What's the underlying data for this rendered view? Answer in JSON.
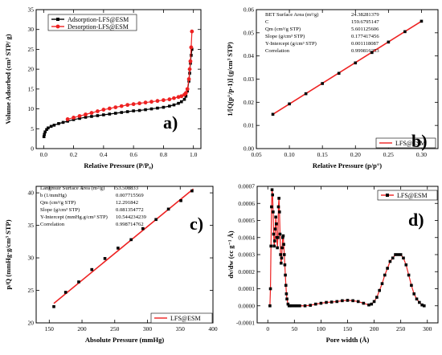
{
  "chart_data": [
    {
      "panel": "a)",
      "type": "line",
      "xlabel": "Relative Pressure (P/P₀)",
      "ylabel": "Volume Adsorbed (cm³ STP/ g)",
      "xlim": [
        -0.05,
        1.05
      ],
      "ylim": [
        0,
        35
      ],
      "xticks": [
        0.0,
        0.2,
        0.4,
        0.6,
        0.8,
        1.0
      ],
      "yticks": [
        0,
        5,
        10,
        15,
        20,
        25,
        30,
        35
      ],
      "xtick_labels": [
        "0.0",
        "0.2",
        "0.4",
        "0.6",
        "0.8",
        "1.0"
      ],
      "ytick_labels": [
        "0",
        "5",
        "10",
        "15",
        "20",
        "25",
        "30",
        "35"
      ],
      "legend_position": "top-left",
      "series": [
        {
          "name": "Adsorption-LFS@ESM",
          "color": "#000000",
          "marker": "square",
          "x": [
            0.002,
            0.005,
            0.01,
            0.02,
            0.03,
            0.05,
            0.07,
            0.1,
            0.13,
            0.16,
            0.2,
            0.24,
            0.28,
            0.32,
            0.36,
            0.4,
            0.44,
            0.48,
            0.52,
            0.56,
            0.6,
            0.64,
            0.68,
            0.72,
            0.76,
            0.8,
            0.84,
            0.87,
            0.9,
            0.92,
            0.94,
            0.95,
            0.96,
            0.97,
            0.975,
            0.98,
            0.985,
            0.99
          ],
          "y": [
            3.0,
            3.6,
            4.2,
            4.8,
            5.2,
            5.6,
            5.9,
            6.3,
            6.6,
            6.9,
            7.3,
            7.6,
            7.9,
            8.1,
            8.3,
            8.5,
            8.7,
            8.9,
            9.1,
            9.3,
            9.5,
            9.6,
            9.8,
            10.0,
            10.2,
            10.4,
            10.7,
            11.0,
            11.4,
            11.8,
            12.4,
            13.2,
            14.5,
            17.0,
            19.0,
            21.5,
            23.5,
            25.0
          ]
        },
        {
          "name": "Desorption-LFS@ESM",
          "color": "#ee2222",
          "marker": "circle",
          "x": [
            0.99,
            0.985,
            0.98,
            0.975,
            0.97,
            0.96,
            0.95,
            0.94,
            0.92,
            0.9,
            0.87,
            0.84,
            0.8,
            0.76,
            0.72,
            0.68,
            0.64,
            0.6,
            0.56,
            0.52,
            0.48,
            0.44,
            0.4,
            0.36,
            0.32,
            0.28,
            0.24,
            0.2,
            0.16
          ],
          "y": [
            29.5,
            25.5,
            22.0,
            20.0,
            17.5,
            15.0,
            14.0,
            13.6,
            13.2,
            13.0,
            12.7,
            12.4,
            12.2,
            12.0,
            11.8,
            11.6,
            11.4,
            11.2,
            11.0,
            10.7,
            10.4,
            10.1,
            9.8,
            9.4,
            9.0,
            8.6,
            8.2,
            7.8,
            7.4
          ]
        }
      ]
    },
    {
      "panel": "b)",
      "type": "scatter",
      "xlabel": "Relative Pressure (p/p°)",
      "ylabel": "1/[Q(p°/p-1)] (g/cm³ STP)",
      "xlim": [
        0.05,
        0.325
      ],
      "ylim": [
        0.0,
        0.06
      ],
      "xticks": [
        0.05,
        0.1,
        0.15,
        0.2,
        0.25,
        0.3
      ],
      "yticks": [
        0.0,
        0.01,
        0.02,
        0.03,
        0.04,
        0.05,
        0.06
      ],
      "xtick_labels": [
        "0.05",
        "0.10",
        "0.15",
        "0.20",
        "0.25",
        "0.30"
      ],
      "ytick_labels": [
        "0.00",
        "0.01",
        "0.02",
        "0.03",
        "0.04",
        "0.05",
        "0.06"
      ],
      "legend_position": "bottom-right",
      "series": [
        {
          "name": "LFS@ESM",
          "color": "#000000",
          "marker": "square",
          "x": [
            0.075,
            0.1,
            0.125,
            0.15,
            0.175,
            0.2,
            0.225,
            0.25,
            0.275,
            0.3
          ],
          "y": [
            0.0148,
            0.0193,
            0.0237,
            0.0281,
            0.0325,
            0.037,
            0.0415,
            0.046,
            0.0505,
            0.055
          ]
        }
      ],
      "fit_line": {
        "color": "#ee2222",
        "x": [
          0.075,
          0.3
        ],
        "y": [
          0.0148,
          0.055
        ]
      },
      "info_table": [
        [
          "BET Surface Area (m²/g)",
          "24.38281379"
        ],
        [
          "C",
          "159.6795147"
        ],
        [
          "Qm (cm³/g STP)",
          "5.601125606"
        ],
        [
          "Slope (g/cm³ STP)",
          "0.177417456"
        ],
        [
          "Y-Intercept (g/cm³ STP)",
          "0.001118087"
        ],
        [
          "Correlation",
          "0.999816253"
        ]
      ]
    },
    {
      "panel": "c)",
      "type": "scatter",
      "xlabel": "Absolute Pressure (mmHg)",
      "ylabel": "p/Q (mmHg·g/cm³ STP)",
      "xlim": [
        130,
        400
      ],
      "ylim": [
        20,
        41
      ],
      "xticks": [
        150,
        200,
        250,
        300,
        350,
        400
      ],
      "yticks": [
        20,
        25,
        30,
        35,
        40
      ],
      "xtick_labels": [
        "150",
        "200",
        "250",
        "300",
        "350",
        "400"
      ],
      "ytick_labels": [
        "20",
        "25",
        "30",
        "35",
        "40"
      ],
      "legend_position": "bottom-right",
      "series": [
        {
          "name": "LFS@ESM",
          "color": "#000000",
          "marker": "square",
          "x": [
            157,
            175,
            195,
            215,
            235,
            255,
            275,
            293,
            313,
            332,
            351,
            368
          ],
          "y": [
            22.5,
            24.7,
            26.3,
            28.2,
            29.9,
            31.5,
            32.8,
            34.5,
            35.9,
            37.5,
            38.8,
            40.3
          ]
        }
      ],
      "fit_line": {
        "color": "#ee2222",
        "x": [
          157,
          370
        ],
        "y": [
          23.0,
          40.6
        ]
      },
      "info_table": [
        [
          "Langmuir Surface Area (m²/g)",
          "53.508833"
        ],
        [
          "b (1/mmHg)",
          "0.007715569"
        ],
        [
          "Qm (cm³/g STP)",
          "12.291842"
        ],
        [
          "Slope (g/cm³ STP)",
          "0.081354772"
        ],
        [
          "Y-Intercept (mmHg.g/cm³ STP)",
          "10.544234239"
        ],
        [
          "Correlation",
          "0.998714762"
        ]
      ]
    },
    {
      "panel": "d)",
      "type": "line",
      "xlabel": "Pore width (Å)",
      "ylabel": "dv/dw (cc g⁻¹ Å)",
      "xlim": [
        -20,
        320
      ],
      "ylim": [
        -0.0001,
        0.0007
      ],
      "xticks": [
        0,
        50,
        100,
        150,
        200,
        250,
        300
      ],
      "yticks": [
        -0.0001,
        0.0,
        0.0001,
        0.0002,
        0.0003,
        0.0004,
        0.0005,
        0.0006,
        0.0007
      ],
      "xtick_labels": [
        "0",
        "50",
        "100",
        "150",
        "200",
        "250",
        "300"
      ],
      "ytick_labels": [
        "-0.0001",
        "0.0000",
        "0.0001",
        "0.0002",
        "0.0003",
        "0.0004",
        "0.0005",
        "0.0006",
        "0.0007"
      ],
      "legend_position": "top-right",
      "series": [
        {
          "name": "LFS@ESM",
          "color": "#000000",
          "line_color": "#ee2222",
          "marker": "square",
          "x": [
            4,
            5,
            6,
            7,
            8,
            9,
            10,
            11,
            12,
            13,
            14,
            15,
            16,
            17,
            18,
            19,
            20,
            21,
            22,
            23,
            24,
            25,
            26,
            27,
            28,
            29,
            30,
            31,
            32,
            33,
            34,
            35,
            36,
            38,
            40,
            42,
            45,
            50,
            55,
            60,
            70,
            80,
            90,
            100,
            110,
            120,
            130,
            140,
            150,
            160,
            170,
            180,
            190,
            195,
            200,
            205,
            210,
            215,
            220,
            225,
            230,
            235,
            240,
            245,
            250,
            255,
            260,
            265,
            270,
            275,
            280,
            285,
            290,
            294
          ],
          "y": [
            0.0,
            0.0001,
            0.00035,
            0.00058,
            0.00068,
            0.00065,
            0.00055,
            0.00042,
            0.00035,
            0.00038,
            0.00045,
            0.00052,
            0.00048,
            0.0004,
            0.00034,
            0.0004,
            0.00058,
            0.00063,
            0.00055,
            0.00042,
            0.0003,
            0.00025,
            0.00028,
            0.00034,
            0.0004,
            0.00041,
            0.00036,
            0.0003,
            0.00024,
            0.00018,
            0.00012,
            7e-05,
            4e-05,
            1e-05,
            0.0,
            0.0,
            0.0,
            0.0,
            0.0,
            0.0,
            0.0,
            3e-06,
            1e-05,
            1.5e-05,
            2e-05,
            2.2e-05,
            2.5e-05,
            3e-05,
            3.2e-05,
            3e-05,
            2.5e-05,
            1.5e-05,
            5e-06,
            1e-05,
            2.5e-05,
            5e-05,
            9e-05,
            0.00013,
            0.00018,
            0.00022,
            0.00026,
            0.00028,
            0.0003,
            0.0003,
            0.0003,
            0.00028,
            0.00024,
            0.00018,
            0.00012,
            7e-05,
            4e-05,
            2e-05,
            5e-06,
            0.0
          ]
        }
      ]
    }
  ]
}
